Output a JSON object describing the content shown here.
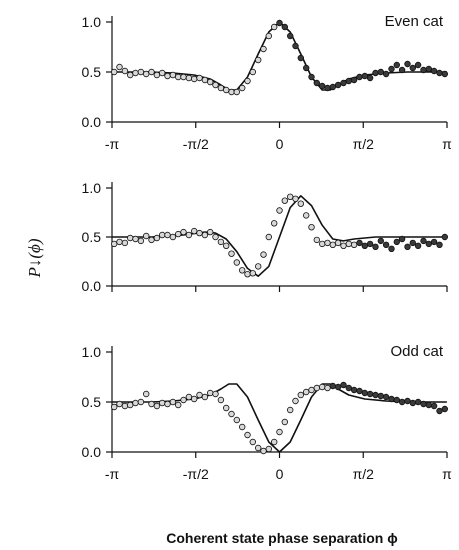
{
  "figure": {
    "ylabel": "P↓(ϕ)",
    "xlabel": "Coherent state phase separation ϕ"
  },
  "chart_data": [
    {
      "type": "scatter",
      "label": "Even cat",
      "xlim": [
        -3.1416,
        3.1416
      ],
      "ylim": [
        0,
        1
      ],
      "x_ticks": [
        -3.1416,
        -1.5708,
        0,
        1.5708,
        3.1416
      ],
      "x_tick_labels": [
        "-π",
        "-π/2",
        "0",
        "π/2",
        "π"
      ],
      "y_ticks": [
        0.0,
        0.5,
        1.0
      ],
      "y_tick_labels": [
        "0.0",
        "0.5",
        "1.0"
      ],
      "series": [
        {
          "kind": "theory-curve",
          "x": [
            -3.14,
            -2.8,
            -2.4,
            -2.0,
            -1.6,
            -1.3,
            -1.1,
            -0.95,
            -0.8,
            -0.6,
            -0.4,
            -0.2,
            0.0,
            0.2,
            0.4,
            0.6,
            0.8,
            0.95,
            1.1,
            1.3,
            1.6,
            2.0,
            2.4,
            2.8,
            3.14
          ],
          "values": [
            0.5,
            0.5,
            0.5,
            0.49,
            0.47,
            0.43,
            0.37,
            0.32,
            0.32,
            0.45,
            0.68,
            0.9,
            1.0,
            0.9,
            0.68,
            0.45,
            0.32,
            0.32,
            0.37,
            0.43,
            0.47,
            0.49,
            0.5,
            0.5,
            0.5
          ]
        },
        {
          "kind": "data-open",
          "x": [
            -3.1,
            -3.0,
            -2.9,
            -2.8,
            -2.7,
            -2.6,
            -2.5,
            -2.4,
            -2.3,
            -2.2,
            -2.1,
            -2.0,
            -1.9,
            -1.8,
            -1.7,
            -1.6,
            -1.5,
            -1.4,
            -1.3,
            -1.2,
            -1.1,
            -1.0,
            -0.9,
            -0.8,
            -0.7,
            -0.6,
            -0.5,
            -0.4,
            -0.3,
            -0.2,
            -0.1
          ],
          "values": [
            0.5,
            0.55,
            0.51,
            0.47,
            0.49,
            0.5,
            0.48,
            0.5,
            0.47,
            0.49,
            0.46,
            0.47,
            0.45,
            0.45,
            0.44,
            0.43,
            0.44,
            0.42,
            0.4,
            0.37,
            0.34,
            0.32,
            0.3,
            0.3,
            0.34,
            0.41,
            0.5,
            0.62,
            0.73,
            0.86,
            0.95
          ]
        },
        {
          "kind": "data-filled",
          "x": [
            0.0,
            0.1,
            0.2,
            0.3,
            0.4,
            0.5,
            0.6,
            0.7,
            0.8,
            0.9,
            1.0,
            1.1,
            1.2,
            1.3,
            1.4,
            1.5,
            1.6,
            1.7,
            1.8,
            1.9,
            2.0,
            2.1,
            2.2,
            2.3,
            2.4,
            2.5,
            2.6,
            2.7,
            2.8,
            2.9,
            3.0,
            3.1
          ],
          "values": [
            0.99,
            0.95,
            0.86,
            0.76,
            0.64,
            0.54,
            0.45,
            0.39,
            0.36,
            0.34,
            0.35,
            0.37,
            0.39,
            0.41,
            0.42,
            0.45,
            0.46,
            0.44,
            0.49,
            0.5,
            0.48,
            0.53,
            0.57,
            0.52,
            0.58,
            0.54,
            0.57,
            0.52,
            0.53,
            0.51,
            0.49,
            0.48
          ]
        }
      ]
    },
    {
      "type": "scatter",
      "label": "",
      "xlim": [
        -3.1416,
        3.1416
      ],
      "ylim": [
        0,
        1
      ],
      "x_ticks": [
        -3.1416,
        -1.5708,
        0,
        1.5708,
        3.1416
      ],
      "x_tick_labels": [
        "",
        "",
        "",
        "",
        ""
      ],
      "y_ticks": [
        0.0,
        0.5,
        1.0
      ],
      "y_tick_labels": [
        "0.0",
        "0.5",
        "1.0"
      ],
      "series": [
        {
          "kind": "theory-curve",
          "x": [
            -3.14,
            -2.4,
            -1.8,
            -1.4,
            -1.2,
            -1.0,
            -0.8,
            -0.6,
            -0.4,
            -0.2,
            0.0,
            0.2,
            0.4,
            0.6,
            0.8,
            1.0,
            1.2,
            1.4,
            1.8,
            2.4,
            3.14
          ],
          "values": [
            0.5,
            0.5,
            0.52,
            0.55,
            0.54,
            0.48,
            0.35,
            0.18,
            0.1,
            0.2,
            0.5,
            0.8,
            0.92,
            0.82,
            0.62,
            0.48,
            0.46,
            0.48,
            0.5,
            0.5,
            0.5
          ]
        },
        {
          "kind": "data-open",
          "x": [
            -3.1,
            -3.0,
            -2.9,
            -2.8,
            -2.7,
            -2.6,
            -2.5,
            -2.4,
            -2.3,
            -2.2,
            -2.1,
            -2.0,
            -1.9,
            -1.8,
            -1.7,
            -1.6,
            -1.5,
            -1.4,
            -1.3,
            -1.2,
            -1.1,
            -1.0,
            -0.9,
            -0.8,
            -0.7,
            -0.6,
            -0.5,
            -0.4,
            -0.3,
            -0.2,
            -0.1,
            0.0,
            0.1,
            0.2,
            0.3,
            0.4,
            0.5,
            0.6,
            0.7,
            0.8,
            0.9,
            1.0,
            1.1,
            1.2,
            1.3,
            1.4
          ],
          "values": [
            0.43,
            0.45,
            0.44,
            0.49,
            0.48,
            0.46,
            0.51,
            0.47,
            0.49,
            0.52,
            0.52,
            0.5,
            0.53,
            0.55,
            0.52,
            0.56,
            0.54,
            0.52,
            0.55,
            0.5,
            0.45,
            0.41,
            0.33,
            0.24,
            0.16,
            0.12,
            0.13,
            0.2,
            0.32,
            0.5,
            0.64,
            0.77,
            0.87,
            0.91,
            0.89,
            0.84,
            0.72,
            0.6,
            0.47,
            0.43,
            0.44,
            0.42,
            0.44,
            0.41,
            0.43,
            0.42
          ]
        },
        {
          "kind": "data-filled",
          "x": [
            1.5,
            1.6,
            1.7,
            1.8,
            1.9,
            2.0,
            2.1,
            2.2,
            2.3,
            2.4,
            2.5,
            2.6,
            2.7,
            2.8,
            2.9,
            3.0,
            3.1
          ],
          "values": [
            0.44,
            0.41,
            0.43,
            0.4,
            0.46,
            0.42,
            0.38,
            0.45,
            0.48,
            0.4,
            0.44,
            0.41,
            0.46,
            0.43,
            0.45,
            0.42,
            0.5
          ]
        }
      ]
    },
    {
      "type": "scatter",
      "label": "Odd cat",
      "xlim": [
        -3.1416,
        3.1416
      ],
      "ylim": [
        0,
        1
      ],
      "x_ticks": [
        -3.1416,
        -1.5708,
        0,
        1.5708,
        3.1416
      ],
      "x_tick_labels": [
        "-π",
        "-π/2",
        "0",
        "π/2",
        "π"
      ],
      "y_ticks": [
        0.0,
        0.5,
        1.0
      ],
      "y_tick_labels": [
        "0.0",
        "0.5",
        "1.0"
      ],
      "series": [
        {
          "kind": "theory-curve",
          "x": [
            -3.14,
            -2.8,
            -2.4,
            -2.0,
            -1.6,
            -1.3,
            -1.1,
            -0.95,
            -0.8,
            -0.6,
            -0.4,
            -0.2,
            0.0,
            0.2,
            0.4,
            0.6,
            0.8,
            0.95,
            1.1,
            1.3,
            1.6,
            2.0,
            2.4,
            2.8,
            3.14
          ],
          "values": [
            0.5,
            0.5,
            0.5,
            0.51,
            0.53,
            0.57,
            0.63,
            0.68,
            0.68,
            0.55,
            0.32,
            0.1,
            0.0,
            0.1,
            0.32,
            0.55,
            0.68,
            0.68,
            0.63,
            0.57,
            0.53,
            0.51,
            0.5,
            0.5,
            0.5
          ]
        },
        {
          "kind": "data-open",
          "x": [
            -3.1,
            -3.0,
            -2.9,
            -2.8,
            -2.7,
            -2.6,
            -2.5,
            -2.4,
            -2.3,
            -2.2,
            -2.1,
            -2.0,
            -1.9,
            -1.8,
            -1.7,
            -1.6,
            -1.5,
            -1.4,
            -1.3,
            -1.2,
            -1.1,
            -1.0,
            -0.9,
            -0.8,
            -0.7,
            -0.6,
            -0.5,
            -0.4,
            -0.3,
            -0.2,
            -0.1,
            0.0,
            0.1,
            0.2,
            0.3,
            0.4,
            0.5,
            0.6,
            0.7,
            0.8,
            0.9
          ],
          "values": [
            0.45,
            0.48,
            0.46,
            0.47,
            0.49,
            0.5,
            0.58,
            0.48,
            0.46,
            0.49,
            0.48,
            0.5,
            0.47,
            0.52,
            0.55,
            0.53,
            0.57,
            0.55,
            0.59,
            0.58,
            0.52,
            0.44,
            0.38,
            0.32,
            0.25,
            0.17,
            0.1,
            0.04,
            0.01,
            0.03,
            0.1,
            0.2,
            0.3,
            0.42,
            0.51,
            0.57,
            0.6,
            0.62,
            0.64,
            0.65,
            0.64
          ]
        },
        {
          "kind": "data-filled",
          "x": [
            1.0,
            1.1,
            1.2,
            1.3,
            1.4,
            1.5,
            1.6,
            1.7,
            1.8,
            1.9,
            2.0,
            2.1,
            2.2,
            2.3,
            2.4,
            2.5,
            2.6,
            2.7,
            2.8,
            2.9,
            3.0,
            3.1
          ],
          "values": [
            0.66,
            0.65,
            0.67,
            0.64,
            0.62,
            0.61,
            0.59,
            0.58,
            0.57,
            0.56,
            0.55,
            0.53,
            0.52,
            0.5,
            0.51,
            0.49,
            0.5,
            0.48,
            0.47,
            0.46,
            0.41,
            0.43
          ]
        }
      ]
    }
  ]
}
